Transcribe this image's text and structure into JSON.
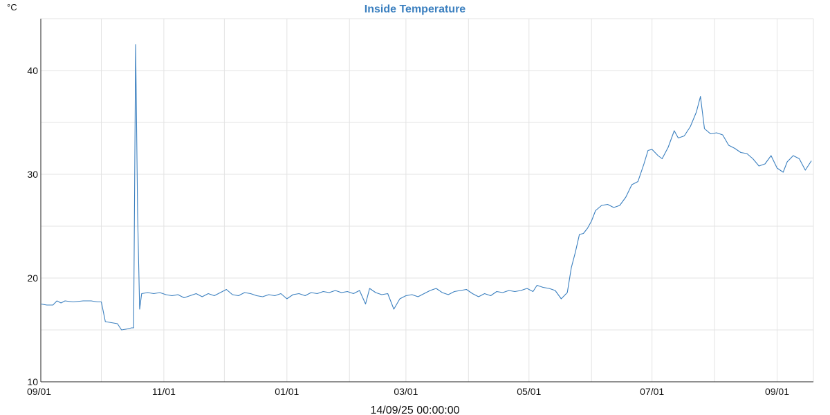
{
  "chart_data": {
    "type": "line",
    "title": "Inside Temperature",
    "unit_label": "°C",
    "xlabel": "14/09/25 00:00:00",
    "ylabel": "",
    "x_domain": [
      "2024-09-01",
      "2025-09-19"
    ],
    "ylim": [
      10,
      45
    ],
    "y_ticks": [
      10,
      20,
      30,
      40
    ],
    "x_tick_dates": [
      "2024-09-01",
      "2024-11-01",
      "2025-01-01",
      "2025-03-01",
      "2025-05-01",
      "2025-07-01",
      "2025-09-01"
    ],
    "x_tick_labels": [
      "09/01",
      "11/01",
      "01/01",
      "03/01",
      "05/01",
      "07/01",
      "09/01"
    ],
    "grid": true,
    "colors": {
      "line": "#3a7fbf",
      "title": "#3a7fbf"
    },
    "series": [
      {
        "values": [
          [
            "2024-09-01",
            17.5
          ],
          [
            "2024-09-04",
            17.4
          ],
          [
            "2024-09-07",
            17.4
          ],
          [
            "2024-09-09",
            17.8
          ],
          [
            "2024-09-11",
            17.6
          ],
          [
            "2024-09-13",
            17.8
          ],
          [
            "2024-09-17",
            17.7
          ],
          [
            "2024-09-22",
            17.8
          ],
          [
            "2024-09-26",
            17.8
          ],
          [
            "2024-09-29",
            17.7
          ],
          [
            "2024-10-01",
            17.7
          ],
          [
            "2024-10-03",
            15.8
          ],
          [
            "2024-10-06",
            15.7
          ],
          [
            "2024-10-09",
            15.6
          ],
          [
            "2024-10-11",
            15.0
          ],
          [
            "2024-10-14",
            15.1
          ],
          [
            "2024-10-16",
            15.2
          ],
          [
            "2024-10-17",
            15.2
          ],
          [
            "2024-10-18",
            42.5
          ],
          [
            "2024-10-19",
            26.0
          ],
          [
            "2024-10-20",
            17.0
          ],
          [
            "2024-10-21",
            18.5
          ],
          [
            "2024-10-24",
            18.6
          ],
          [
            "2024-10-27",
            18.5
          ],
          [
            "2024-10-30",
            18.6
          ],
          [
            "2024-11-02",
            18.4
          ],
          [
            "2024-11-05",
            18.3
          ],
          [
            "2024-11-08",
            18.4
          ],
          [
            "2024-11-11",
            18.1
          ],
          [
            "2024-11-14",
            18.3
          ],
          [
            "2024-11-17",
            18.5
          ],
          [
            "2024-11-20",
            18.2
          ],
          [
            "2024-11-23",
            18.5
          ],
          [
            "2024-11-26",
            18.3
          ],
          [
            "2024-11-29",
            18.6
          ],
          [
            "2024-12-02",
            18.9
          ],
          [
            "2024-12-05",
            18.4
          ],
          [
            "2024-12-08",
            18.3
          ],
          [
            "2024-12-11",
            18.6
          ],
          [
            "2024-12-14",
            18.5
          ],
          [
            "2024-12-17",
            18.3
          ],
          [
            "2024-12-20",
            18.2
          ],
          [
            "2024-12-23",
            18.4
          ],
          [
            "2024-12-26",
            18.3
          ],
          [
            "2024-12-29",
            18.5
          ],
          [
            "2025-01-01",
            18.0
          ],
          [
            "2025-01-04",
            18.4
          ],
          [
            "2025-01-07",
            18.5
          ],
          [
            "2025-01-10",
            18.3
          ],
          [
            "2025-01-13",
            18.6
          ],
          [
            "2025-01-16",
            18.5
          ],
          [
            "2025-01-19",
            18.7
          ],
          [
            "2025-01-22",
            18.6
          ],
          [
            "2025-01-25",
            18.8
          ],
          [
            "2025-01-28",
            18.6
          ],
          [
            "2025-01-31",
            18.7
          ],
          [
            "2025-02-03",
            18.5
          ],
          [
            "2025-02-06",
            18.8
          ],
          [
            "2025-02-09",
            17.5
          ],
          [
            "2025-02-11",
            19.0
          ],
          [
            "2025-02-14",
            18.6
          ],
          [
            "2025-02-17",
            18.4
          ],
          [
            "2025-02-20",
            18.5
          ],
          [
            "2025-02-23",
            17.0
          ],
          [
            "2025-02-26",
            18.0
          ],
          [
            "2025-03-01",
            18.3
          ],
          [
            "2025-03-04",
            18.4
          ],
          [
            "2025-03-07",
            18.2
          ],
          [
            "2025-03-10",
            18.5
          ],
          [
            "2025-03-13",
            18.8
          ],
          [
            "2025-03-16",
            19.0
          ],
          [
            "2025-03-19",
            18.6
          ],
          [
            "2025-03-22",
            18.4
          ],
          [
            "2025-03-25",
            18.7
          ],
          [
            "2025-03-28",
            18.8
          ],
          [
            "2025-03-31",
            18.9
          ],
          [
            "2025-04-03",
            18.5
          ],
          [
            "2025-04-06",
            18.2
          ],
          [
            "2025-04-09",
            18.5
          ],
          [
            "2025-04-12",
            18.3
          ],
          [
            "2025-04-15",
            18.7
          ],
          [
            "2025-04-18",
            18.6
          ],
          [
            "2025-04-21",
            18.8
          ],
          [
            "2025-04-24",
            18.7
          ],
          [
            "2025-04-27",
            18.8
          ],
          [
            "2025-04-30",
            19.0
          ],
          [
            "2025-05-03",
            18.7
          ],
          [
            "2025-05-05",
            19.3
          ],
          [
            "2025-05-08",
            19.1
          ],
          [
            "2025-05-11",
            19.0
          ],
          [
            "2025-05-14",
            18.8
          ],
          [
            "2025-05-17",
            18.0
          ],
          [
            "2025-05-20",
            18.6
          ],
          [
            "2025-05-22",
            21.0
          ],
          [
            "2025-05-24",
            22.5
          ],
          [
            "2025-05-26",
            24.2
          ],
          [
            "2025-05-28",
            24.3
          ],
          [
            "2025-05-30",
            24.8
          ],
          [
            "2025-06-01",
            25.5
          ],
          [
            "2025-06-03",
            26.5
          ],
          [
            "2025-06-06",
            27.0
          ],
          [
            "2025-06-09",
            27.1
          ],
          [
            "2025-06-12",
            26.8
          ],
          [
            "2025-06-15",
            27.0
          ],
          [
            "2025-06-18",
            27.8
          ],
          [
            "2025-06-21",
            29.0
          ],
          [
            "2025-06-24",
            29.3
          ],
          [
            "2025-06-27",
            31.0
          ],
          [
            "2025-06-29",
            32.3
          ],
          [
            "2025-07-01",
            32.4
          ],
          [
            "2025-07-04",
            31.8
          ],
          [
            "2025-07-06",
            31.5
          ],
          [
            "2025-07-09",
            32.6
          ],
          [
            "2025-07-12",
            34.2
          ],
          [
            "2025-07-14",
            33.5
          ],
          [
            "2025-07-17",
            33.7
          ],
          [
            "2025-07-20",
            34.6
          ],
          [
            "2025-07-23",
            36.0
          ],
          [
            "2025-07-25",
            37.5
          ],
          [
            "2025-07-27",
            34.4
          ],
          [
            "2025-07-30",
            33.9
          ],
          [
            "2025-08-02",
            34.0
          ],
          [
            "2025-08-05",
            33.8
          ],
          [
            "2025-08-08",
            32.8
          ],
          [
            "2025-08-11",
            32.5
          ],
          [
            "2025-08-14",
            32.1
          ],
          [
            "2025-08-17",
            32.0
          ],
          [
            "2025-08-20",
            31.5
          ],
          [
            "2025-08-23",
            30.8
          ],
          [
            "2025-08-26",
            31.0
          ],
          [
            "2025-08-29",
            31.8
          ],
          [
            "2025-09-01",
            30.6
          ],
          [
            "2025-09-04",
            30.2
          ],
          [
            "2025-09-06",
            31.2
          ],
          [
            "2025-09-09",
            31.8
          ],
          [
            "2025-09-12",
            31.5
          ],
          [
            "2025-09-15",
            30.4
          ],
          [
            "2025-09-18",
            31.3
          ]
        ]
      }
    ]
  }
}
